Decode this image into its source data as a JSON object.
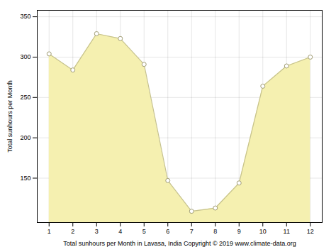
{
  "chart_data": {
    "type": "area",
    "x": [
      1,
      2,
      3,
      4,
      5,
      6,
      7,
      8,
      9,
      10,
      11,
      12
    ],
    "values": [
      304,
      284,
      329,
      323,
      291,
      147,
      109,
      113,
      144,
      264,
      289,
      300
    ],
    "color": "#f5f0b0",
    "marker": "circle",
    "xlabel": "Total sunhours per Month in Lavasa, India Copyright © 2019 www.climate-data.org",
    "ylabel": "Total sunhours per Month",
    "xlim": [
      0.5,
      12.5
    ],
    "ylim": [
      95,
      358
    ],
    "xticks": [
      1,
      2,
      3,
      4,
      5,
      6,
      7,
      8,
      9,
      10,
      11,
      12
    ],
    "yticks": [
      150,
      200,
      250,
      300,
      350
    ],
    "grid": true
  }
}
